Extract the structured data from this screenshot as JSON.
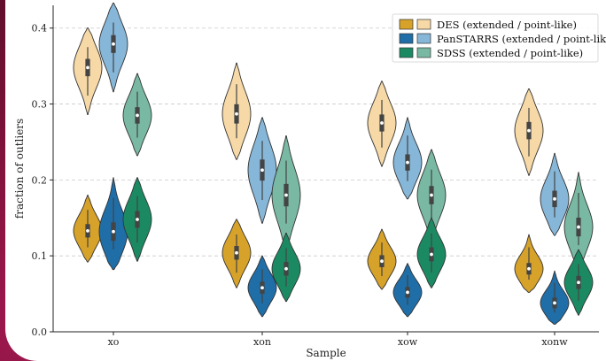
{
  "colors": {
    "background": "#6b1030",
    "DES": {
      "extended": "#d6a22a",
      "point_like": "#f6d9a6"
    },
    "PanSTARRS": {
      "extended": "#1f6ea8",
      "point_like": "#86b6d8"
    },
    "SDSS": {
      "extended": "#1b8a63",
      "point_like": "#79b9a3"
    }
  },
  "chart_data": {
    "type": "violin",
    "xlabel": "Sample",
    "ylabel": "fraction of outliers",
    "categories": [
      "xo",
      "xon",
      "xow",
      "xonw"
    ],
    "ylim": [
      0.0,
      0.43
    ],
    "yticks": [
      0.0,
      0.1,
      0.2,
      0.3,
      0.4
    ],
    "ytick_labels": [
      "0.0",
      "0.1",
      "0.2",
      "0.3",
      "0.4"
    ],
    "grid": "horizontal dashed",
    "legend": {
      "placement": "top-right",
      "entries": [
        "DES (extended / point-like)",
        "PanSTARRS (extended / point-like)",
        "SDSS (extended / point-like)"
      ]
    },
    "series": [
      {
        "name": "DES",
        "extended": [
          {
            "median": 0.133,
            "min": 0.092,
            "max": 0.18
          },
          {
            "median": 0.104,
            "min": 0.058,
            "max": 0.148
          },
          {
            "median": 0.093,
            "min": 0.056,
            "max": 0.135
          },
          {
            "median": 0.083,
            "min": 0.052,
            "max": 0.128
          }
        ],
        "point_like": [
          {
            "median": 0.348,
            "min": 0.286,
            "max": 0.4
          },
          {
            "median": 0.287,
            "min": 0.227,
            "max": 0.354
          },
          {
            "median": 0.275,
            "min": 0.218,
            "max": 0.33
          },
          {
            "median": 0.265,
            "min": 0.206,
            "max": 0.32
          }
        ]
      },
      {
        "name": "PanSTARRS",
        "extended": [
          {
            "median": 0.132,
            "min": 0.082,
            "max": 0.203
          },
          {
            "median": 0.058,
            "min": 0.02,
            "max": 0.1
          },
          {
            "median": 0.052,
            "min": 0.02,
            "max": 0.09
          },
          {
            "median": 0.038,
            "min": 0.01,
            "max": 0.08
          }
        ],
        "point_like": [
          {
            "median": 0.379,
            "min": 0.316,
            "max": 0.433
          },
          {
            "median": 0.213,
            "min": 0.143,
            "max": 0.282
          },
          {
            "median": 0.223,
            "min": 0.175,
            "max": 0.282
          },
          {
            "median": 0.175,
            "min": 0.127,
            "max": 0.235
          }
        ]
      },
      {
        "name": "SDSS",
        "extended": [
          {
            "median": 0.148,
            "min": 0.093,
            "max": 0.203
          },
          {
            "median": 0.083,
            "min": 0.04,
            "max": 0.13
          },
          {
            "median": 0.102,
            "min": 0.058,
            "max": 0.15
          },
          {
            "median": 0.065,
            "min": 0.022,
            "max": 0.108
          }
        ],
        "point_like": [
          {
            "median": 0.285,
            "min": 0.232,
            "max": 0.34
          },
          {
            "median": 0.18,
            "min": 0.11,
            "max": 0.258
          },
          {
            "median": 0.18,
            "min": 0.12,
            "max": 0.24
          },
          {
            "median": 0.138,
            "min": 0.087,
            "max": 0.21
          }
        ]
      }
    ]
  }
}
